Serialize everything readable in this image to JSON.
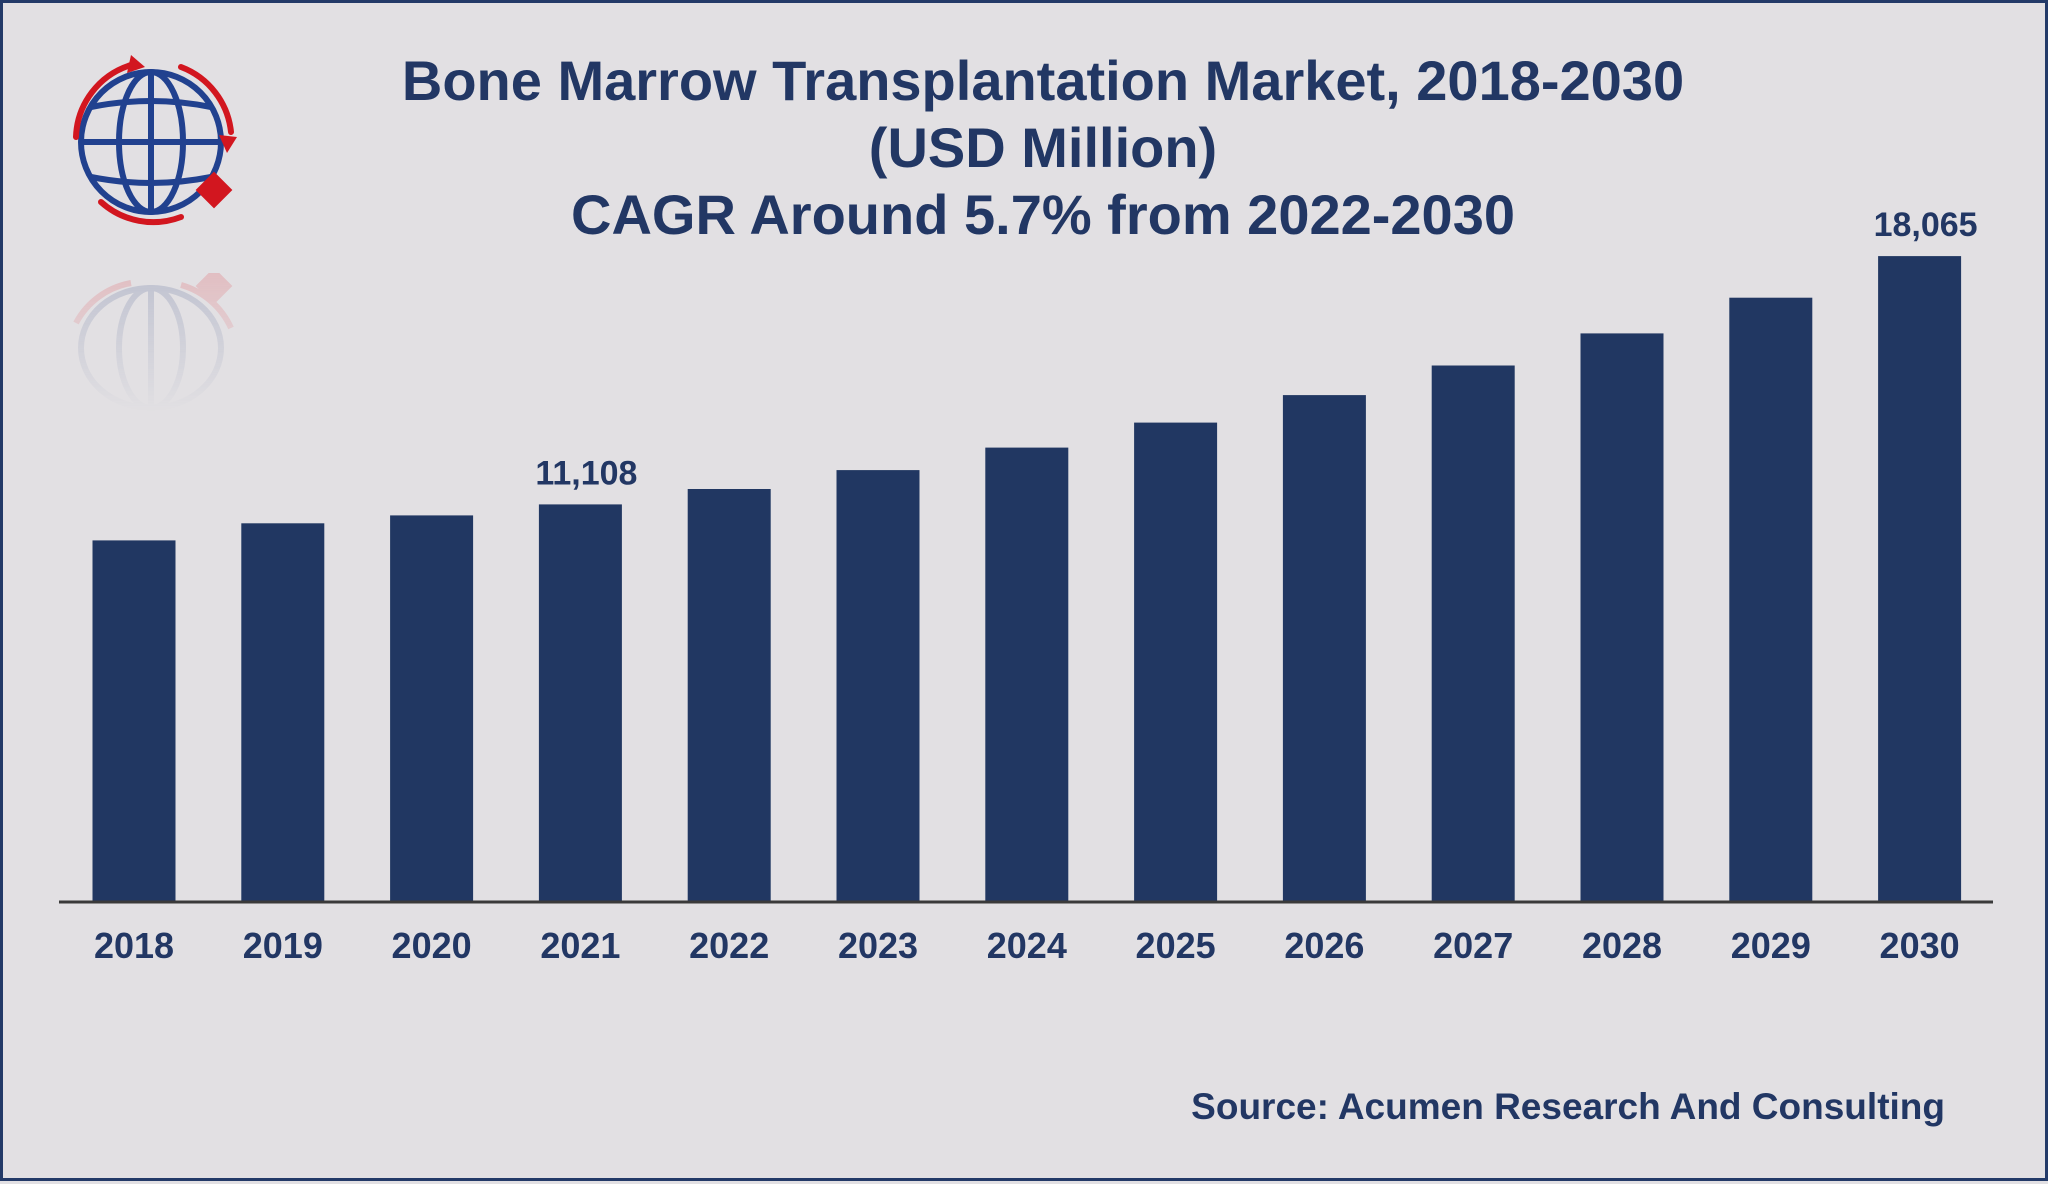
{
  "title_lines": [
    "Bone Marrow Transplantation Market, 2018-2030",
    "(USD Million)",
    "CAGR Around 5.7% from 2022-2030"
  ],
  "source": "Source: Acumen Research And Consulting",
  "colors": {
    "bar": "#213762",
    "text": "#223764",
    "background": "#e2e0e3",
    "axis": "#3a3a3a",
    "logo_blue": "#21418f",
    "logo_red": "#d2161f"
  },
  "icons": [
    "globe-logo-icon"
  ],
  "chart_data": {
    "type": "bar",
    "title": "Bone Marrow Transplantation Market, 2018-2030 (USD Million)",
    "xlabel": "",
    "ylabel": "",
    "categories": [
      "2018",
      "2019",
      "2020",
      "2021",
      "2022",
      "2023",
      "2024",
      "2025",
      "2026",
      "2027",
      "2028",
      "2029",
      "2030"
    ],
    "values": [
      10100,
      10580,
      10800,
      11108,
      11540,
      12070,
      12700,
      13400,
      14170,
      15000,
      15900,
      16900,
      18065
    ],
    "data_labels": [
      {
        "index": 3,
        "text": "11,108"
      },
      {
        "index": 12,
        "text": "18,065"
      }
    ],
    "ylim": [
      0,
      20000
    ],
    "grid": false,
    "legend": "none"
  }
}
